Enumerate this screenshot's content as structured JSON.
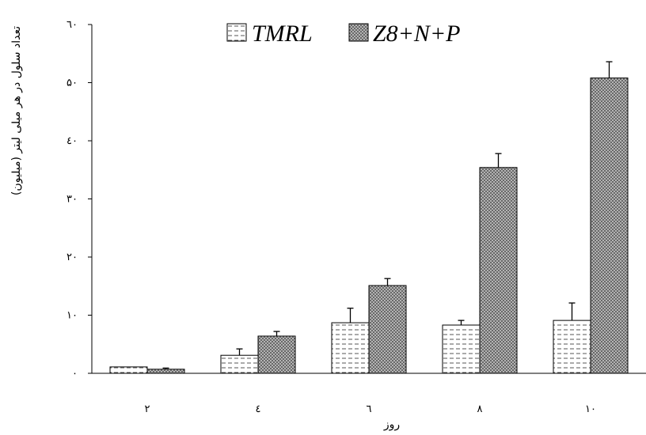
{
  "chart_data": {
    "type": "bar",
    "title": "",
    "xlabel": "روز",
    "ylabel": "تعداد سلول در هر میلی لیتر (میلیون)",
    "categories": [
      "۲",
      "٤",
      "٦",
      "٨",
      "١٠"
    ],
    "ylim": [
      0,
      60
    ],
    "yticks": [
      0,
      10,
      20,
      30,
      40,
      50,
      60
    ],
    "ytick_labels": [
      "۰",
      "١۰",
      "۲۰",
      "۳۰",
      "٤۰",
      "۵۰",
      "٦۰"
    ],
    "grid": false,
    "legend_position": "top",
    "series": [
      {
        "name": "TMRL",
        "values": [
          1.1,
          3.1,
          8.7,
          8.3,
          9.1
        ],
        "errors": [
          0.0,
          1.1,
          2.5,
          0.8,
          3.0
        ],
        "pattern": "dashes",
        "color": "#ffffff"
      },
      {
        "name": "Z8+N+P",
        "values": [
          0.7,
          6.4,
          15.1,
          35.4,
          50.8
        ],
        "errors": [
          0.2,
          0.8,
          1.2,
          2.4,
          2.8
        ],
        "pattern": "crosshatch",
        "color": "#9a9a9a"
      }
    ]
  }
}
